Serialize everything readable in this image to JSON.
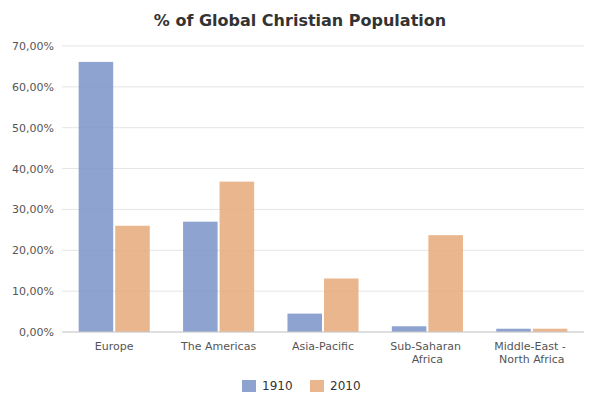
{
  "chart_data": {
    "type": "bar",
    "title": "% of Global Christian Population",
    "categories": [
      "Europe",
      "The Americas",
      "Asia-Pacific",
      "Sub-Saharan Africa",
      "Middle-East - North Africa"
    ],
    "series": [
      {
        "name": "1910",
        "color": "#7b93c9",
        "values": [
          0.661,
          0.27,
          0.045,
          0.014,
          0.008
        ]
      },
      {
        "name": "2010",
        "color": "#e5a97a",
        "values": [
          0.26,
          0.368,
          0.131,
          0.237,
          0.008
        ]
      }
    ],
    "ylim": [
      0,
      0.7
    ],
    "yticks": [
      {
        "value": 0.0,
        "label": "0,00%"
      },
      {
        "value": 0.1,
        "label": "10,00%"
      },
      {
        "value": 0.2,
        "label": "20,00%"
      },
      {
        "value": 0.3,
        "label": "30,00%"
      },
      {
        "value": 0.4,
        "label": "40,00%"
      },
      {
        "value": 0.5,
        "label": "50,00%"
      },
      {
        "value": 0.6,
        "label": "60,00%"
      },
      {
        "value": 0.7,
        "label": "70,00%"
      }
    ],
    "grid": true,
    "legend": "bottom"
  }
}
